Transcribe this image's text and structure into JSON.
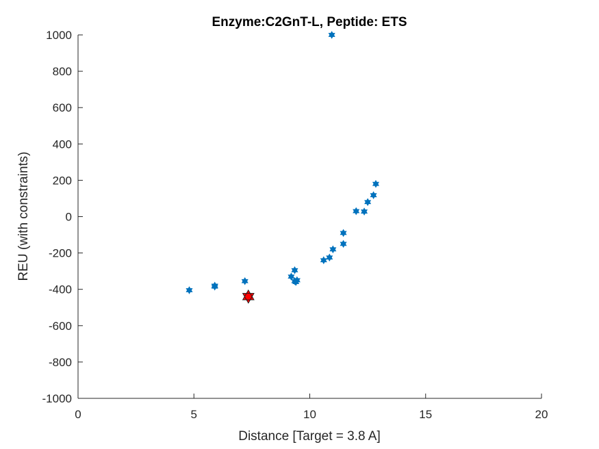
{
  "chart_data": {
    "type": "scatter",
    "title": "Enzyme:C2GnT-L, Peptide: ETS",
    "xlabel": "Distance [Target = 3.8 A]",
    "ylabel": "REU (with constraints)",
    "xlim": [
      0,
      20
    ],
    "ylim": [
      -1000,
      1000
    ],
    "xticks": [
      "0",
      "5",
      "10",
      "15",
      "20"
    ],
    "yticks": [
      "-1000",
      "-800",
      "-600",
      "-400",
      "-200",
      "0",
      "200",
      "400",
      "600",
      "800",
      "1000"
    ],
    "grid": false,
    "series": [
      {
        "marker": "hexagram",
        "color": "#0072BD",
        "points": [
          [
            4.8,
            -405
          ],
          [
            5.9,
            -385
          ],
          [
            5.9,
            -380
          ],
          [
            7.2,
            -355
          ],
          [
            9.2,
            -330
          ],
          [
            9.35,
            -295
          ],
          [
            9.35,
            -355
          ],
          [
            9.4,
            -360
          ],
          [
            9.45,
            -350
          ],
          [
            10.6,
            -240
          ],
          [
            10.85,
            -225
          ],
          [
            11.0,
            -180
          ],
          [
            11.45,
            -90
          ],
          [
            11.45,
            -150
          ],
          [
            12.0,
            30
          ],
          [
            12.35,
            28
          ],
          [
            12.5,
            80
          ],
          [
            12.75,
            118
          ],
          [
            12.85,
            180
          ],
          [
            10.95,
            1000
          ]
        ]
      },
      {
        "marker": "hexagram",
        "color": "#FF0000",
        "points": [
          [
            7.35,
            -440
          ]
        ]
      }
    ]
  }
}
